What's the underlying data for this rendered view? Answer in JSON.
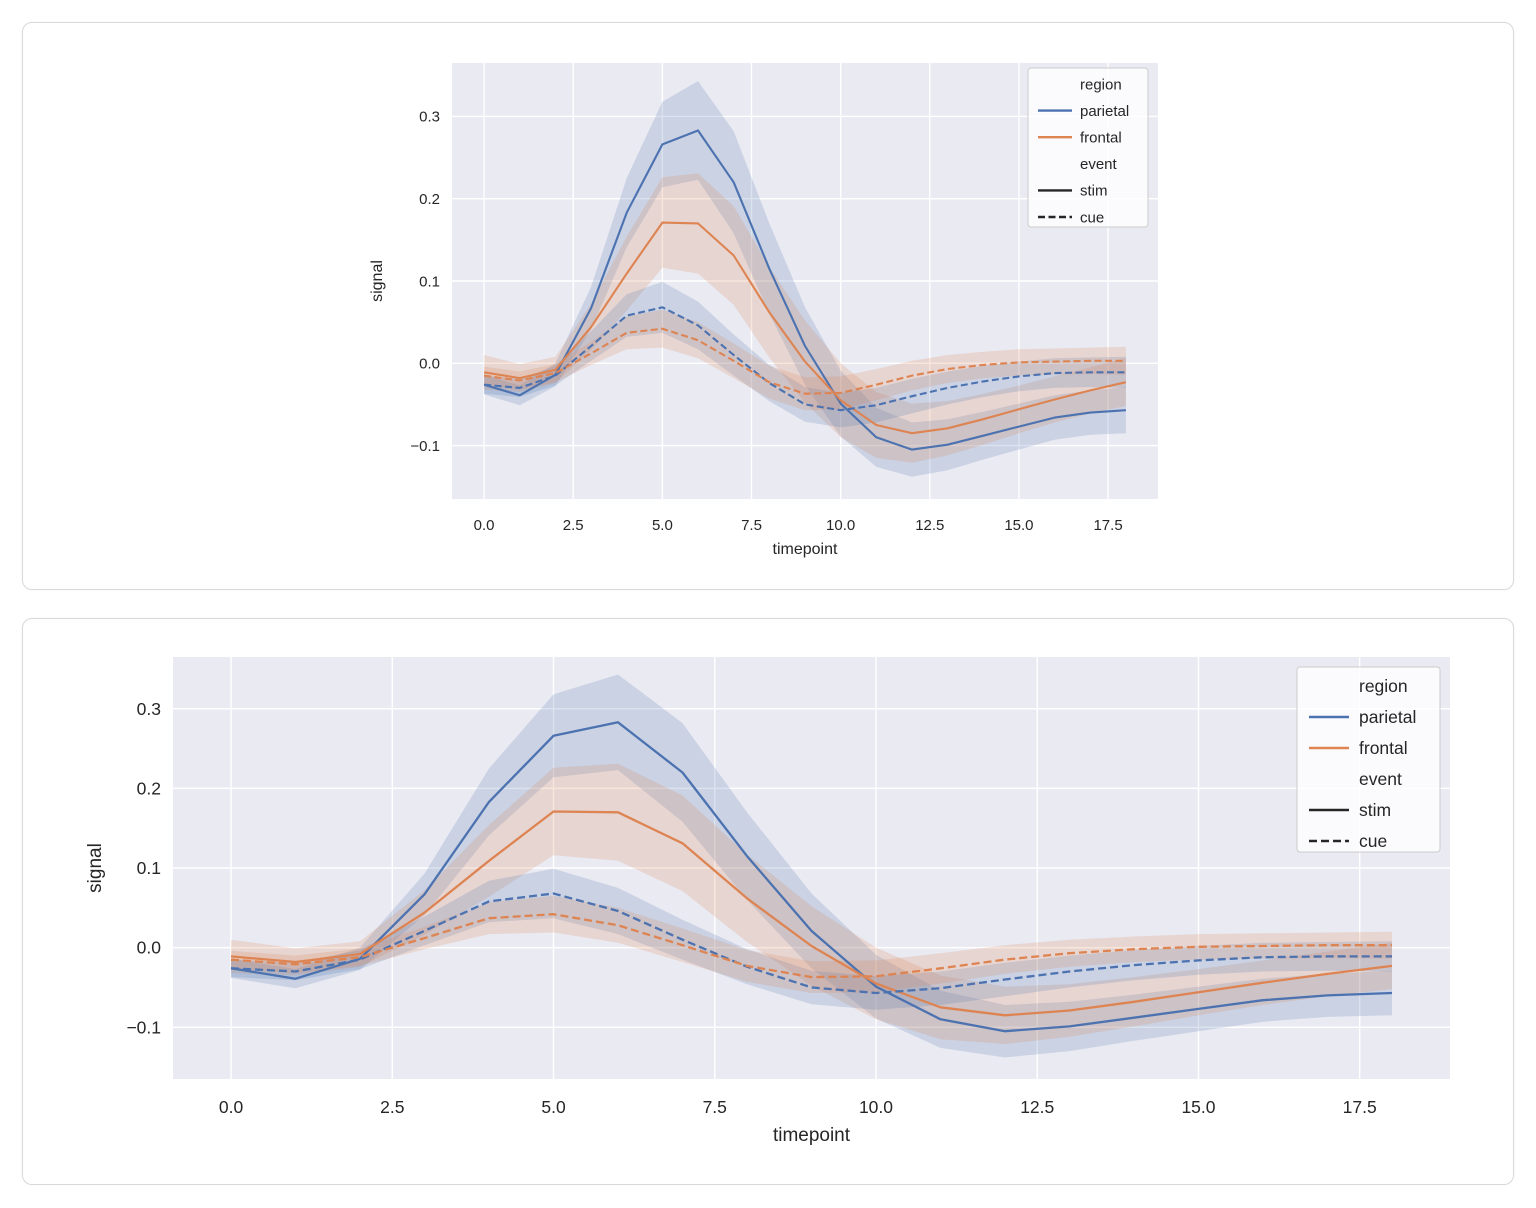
{
  "page": {
    "background": "#ffffff",
    "card_border": "#d9d9d9"
  },
  "palette": {
    "parietal": "#4c72b0",
    "frontal": "#dd8452",
    "legend_line": "#262626",
    "plot_bg": "#eaeaf2",
    "grid": "#ffffff",
    "text": "#262626",
    "band_opacity": 0.2,
    "legend_bg": "rgba(255,255,255,0.8)",
    "legend_border": "#cccccc"
  },
  "chart_data": [
    {
      "type": "line",
      "title": "",
      "xlabel": "timepoint",
      "ylabel": "signal",
      "grid": true,
      "legend_position": "upper right",
      "xlim": [
        -0.9,
        18.9
      ],
      "ylim": [
        -0.165,
        0.365
      ],
      "x": [
        0,
        1,
        2,
        3,
        4,
        5,
        6,
        7,
        8,
        9,
        10,
        11,
        12,
        13,
        14,
        15,
        16,
        17,
        18
      ],
      "xticks": [
        {
          "value": 0,
          "label": "0.0"
        },
        {
          "value": 2.5,
          "label": "2.5"
        },
        {
          "value": 5,
          "label": "5.0"
        },
        {
          "value": 7.5,
          "label": "7.5"
        },
        {
          "value": 10,
          "label": "10.0"
        },
        {
          "value": 12.5,
          "label": "12.5"
        },
        {
          "value": 15,
          "label": "15.0"
        },
        {
          "value": 17.5,
          "label": "17.5"
        }
      ],
      "yticks": [
        {
          "value": -0.1,
          "label": "−0.1"
        },
        {
          "value": 0.0,
          "label": "0.0"
        },
        {
          "value": 0.1,
          "label": "0.1"
        },
        {
          "value": 0.2,
          "label": "0.2"
        },
        {
          "value": 0.3,
          "label": "0.3"
        }
      ],
      "legend": {
        "entries": [
          {
            "label": "region",
            "kind": "title"
          },
          {
            "label": "parietal",
            "kind": "line",
            "color": "parietal",
            "dashed": false
          },
          {
            "label": "frontal",
            "kind": "line",
            "color": "frontal",
            "dashed": false
          },
          {
            "label": "event",
            "kind": "title"
          },
          {
            "label": "stim",
            "kind": "line",
            "color": "legend_line",
            "dashed": false
          },
          {
            "label": "cue",
            "kind": "line",
            "color": "legend_line",
            "dashed": true
          }
        ]
      },
      "series": [
        {
          "name": "parietal-stim",
          "region": "parietal",
          "event": "stim",
          "color": "parietal",
          "dashed": false,
          "values": [
            -0.026,
            -0.039,
            -0.014,
            0.067,
            0.183,
            0.266,
            0.283,
            0.22,
            0.115,
            0.021,
            -0.049,
            -0.09,
            -0.105,
            -0.099,
            -0.088,
            -0.077,
            -0.066,
            -0.06,
            -0.057
          ],
          "ci": [
            0.012,
            0.012,
            0.014,
            0.026,
            0.042,
            0.052,
            0.06,
            0.062,
            0.055,
            0.047,
            0.04,
            0.036,
            0.033,
            0.031,
            0.029,
            0.028,
            0.027,
            0.027,
            0.028
          ]
        },
        {
          "name": "frontal-stim",
          "region": "frontal",
          "event": "stim",
          "color": "frontal",
          "dashed": false,
          "values": [
            -0.011,
            -0.018,
            -0.008,
            0.044,
            0.109,
            0.171,
            0.17,
            0.131,
            0.062,
            0.002,
            -0.045,
            -0.075,
            -0.085,
            -0.079,
            -0.068,
            -0.056,
            -0.044,
            -0.033,
            -0.023
          ],
          "ci": [
            0.021,
            0.017,
            0.016,
            0.028,
            0.045,
            0.055,
            0.061,
            0.06,
            0.055,
            0.05,
            0.045,
            0.04,
            0.036,
            0.033,
            0.031,
            0.029,
            0.028,
            0.028,
            0.029
          ]
        },
        {
          "name": "parietal-cue",
          "region": "parietal",
          "event": "cue",
          "color": "parietal",
          "dashed": true,
          "values": [
            -0.026,
            -0.03,
            -0.015,
            0.021,
            0.058,
            0.068,
            0.046,
            0.01,
            -0.024,
            -0.05,
            -0.057,
            -0.051,
            -0.04,
            -0.03,
            -0.022,
            -0.016,
            -0.012,
            -0.011,
            -0.011
          ],
          "ci": [
            0.011,
            0.011,
            0.012,
            0.018,
            0.026,
            0.031,
            0.029,
            0.025,
            0.022,
            0.021,
            0.021,
            0.021,
            0.021,
            0.02,
            0.019,
            0.018,
            0.018,
            0.018,
            0.019
          ]
        },
        {
          "name": "frontal-cue",
          "region": "frontal",
          "event": "cue",
          "color": "frontal",
          "dashed": true,
          "values": [
            -0.015,
            -0.021,
            -0.012,
            0.012,
            0.037,
            0.042,
            0.028,
            0.003,
            -0.023,
            -0.037,
            -0.036,
            -0.026,
            -0.015,
            -0.007,
            -0.002,
            0.001,
            0.002,
            0.003,
            0.003
          ],
          "ci": [
            0.011,
            0.011,
            0.011,
            0.014,
            0.02,
            0.023,
            0.022,
            0.021,
            0.02,
            0.02,
            0.02,
            0.019,
            0.018,
            0.017,
            0.016,
            0.016,
            0.016,
            0.016,
            0.017
          ]
        }
      ]
    },
    {
      "type": "line",
      "title": "",
      "xlabel": "timepoint",
      "ylabel": "signal",
      "grid": true,
      "legend_position": "upper right",
      "xlim": [
        -0.9,
        18.9
      ],
      "ylim": [
        -0.165,
        0.365
      ],
      "x": [
        0,
        1,
        2,
        3,
        4,
        5,
        6,
        7,
        8,
        9,
        10,
        11,
        12,
        13,
        14,
        15,
        16,
        17,
        18
      ],
      "xticks": [
        {
          "value": 0,
          "label": "0.0"
        },
        {
          "value": 2.5,
          "label": "2.5"
        },
        {
          "value": 5,
          "label": "5.0"
        },
        {
          "value": 7.5,
          "label": "7.5"
        },
        {
          "value": 10,
          "label": "10.0"
        },
        {
          "value": 12.5,
          "label": "12.5"
        },
        {
          "value": 15,
          "label": "15.0"
        },
        {
          "value": 17.5,
          "label": "17.5"
        }
      ],
      "yticks": [
        {
          "value": -0.1,
          "label": "−0.1"
        },
        {
          "value": 0.0,
          "label": "0.0"
        },
        {
          "value": 0.1,
          "label": "0.1"
        },
        {
          "value": 0.2,
          "label": "0.2"
        },
        {
          "value": 0.3,
          "label": "0.3"
        }
      ],
      "legend": {
        "entries": [
          {
            "label": "region",
            "kind": "title"
          },
          {
            "label": "parietal",
            "kind": "line",
            "color": "parietal",
            "dashed": false
          },
          {
            "label": "frontal",
            "kind": "line",
            "color": "frontal",
            "dashed": false
          },
          {
            "label": "event",
            "kind": "title"
          },
          {
            "label": "stim",
            "kind": "line",
            "color": "legend_line",
            "dashed": false
          },
          {
            "label": "cue",
            "kind": "line",
            "color": "legend_line",
            "dashed": true
          }
        ]
      },
      "series": [
        {
          "name": "parietal-stim",
          "region": "parietal",
          "event": "stim",
          "color": "parietal",
          "dashed": false,
          "values": [
            -0.026,
            -0.039,
            -0.014,
            0.067,
            0.183,
            0.266,
            0.283,
            0.22,
            0.115,
            0.021,
            -0.049,
            -0.09,
            -0.105,
            -0.099,
            -0.088,
            -0.077,
            -0.066,
            -0.06,
            -0.057
          ],
          "ci": [
            0.012,
            0.012,
            0.014,
            0.026,
            0.042,
            0.052,
            0.06,
            0.062,
            0.055,
            0.047,
            0.04,
            0.036,
            0.033,
            0.031,
            0.029,
            0.028,
            0.027,
            0.027,
            0.028
          ]
        },
        {
          "name": "frontal-stim",
          "region": "frontal",
          "event": "stim",
          "color": "frontal",
          "dashed": false,
          "values": [
            -0.011,
            -0.018,
            -0.008,
            0.044,
            0.109,
            0.171,
            0.17,
            0.131,
            0.062,
            0.002,
            -0.045,
            -0.075,
            -0.085,
            -0.079,
            -0.068,
            -0.056,
            -0.044,
            -0.033,
            -0.023
          ],
          "ci": [
            0.021,
            0.017,
            0.016,
            0.028,
            0.045,
            0.055,
            0.061,
            0.06,
            0.055,
            0.05,
            0.045,
            0.04,
            0.036,
            0.033,
            0.031,
            0.029,
            0.028,
            0.028,
            0.029
          ]
        },
        {
          "name": "parietal-cue",
          "region": "parietal",
          "event": "cue",
          "color": "parietal",
          "dashed": true,
          "values": [
            -0.026,
            -0.03,
            -0.015,
            0.021,
            0.058,
            0.068,
            0.046,
            0.01,
            -0.024,
            -0.05,
            -0.057,
            -0.051,
            -0.04,
            -0.03,
            -0.022,
            -0.016,
            -0.012,
            -0.011,
            -0.011
          ],
          "ci": [
            0.011,
            0.011,
            0.012,
            0.018,
            0.026,
            0.031,
            0.029,
            0.025,
            0.022,
            0.021,
            0.021,
            0.021,
            0.021,
            0.02,
            0.019,
            0.018,
            0.018,
            0.018,
            0.019
          ]
        },
        {
          "name": "frontal-cue",
          "region": "frontal",
          "event": "cue",
          "color": "frontal",
          "dashed": true,
          "values": [
            -0.015,
            -0.021,
            -0.012,
            0.012,
            0.037,
            0.042,
            0.028,
            0.003,
            -0.023,
            -0.037,
            -0.036,
            -0.026,
            -0.015,
            -0.007,
            -0.002,
            0.001,
            0.002,
            0.003,
            0.003
          ],
          "ci": [
            0.011,
            0.011,
            0.011,
            0.014,
            0.02,
            0.023,
            0.022,
            0.021,
            0.02,
            0.02,
            0.02,
            0.019,
            0.018,
            0.017,
            0.016,
            0.016,
            0.016,
            0.016,
            0.017
          ]
        }
      ]
    }
  ]
}
